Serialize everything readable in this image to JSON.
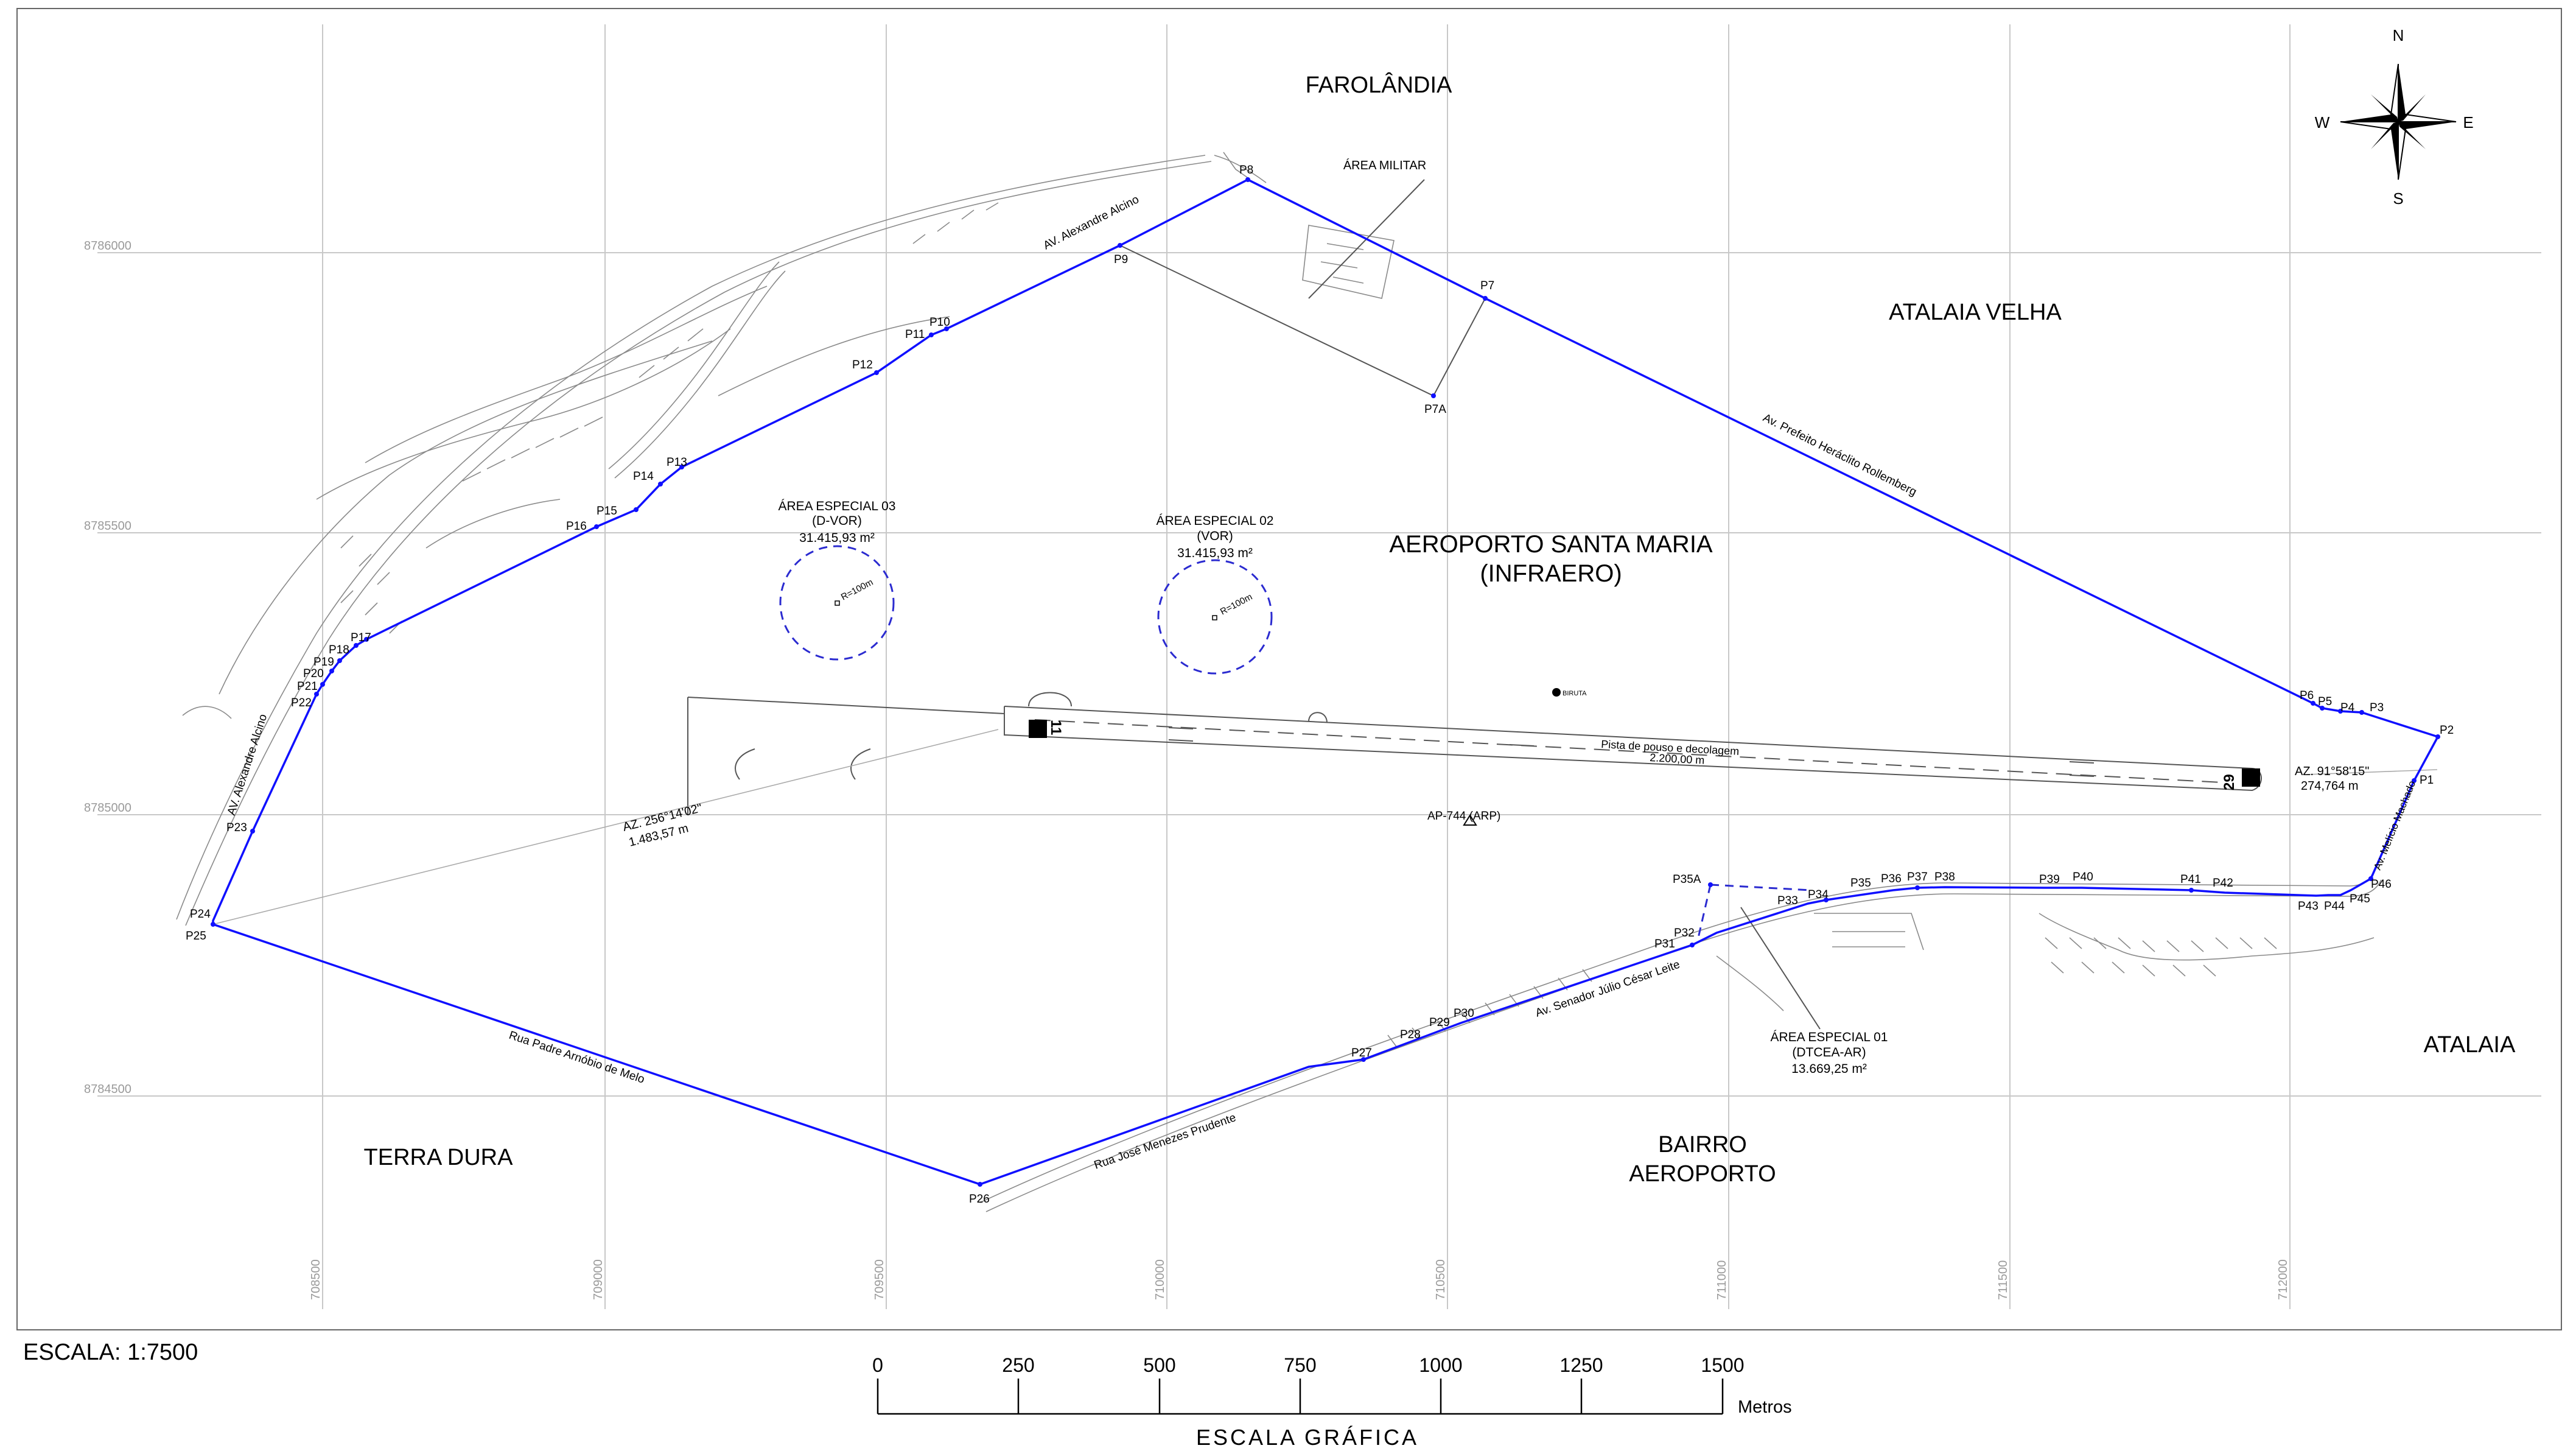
{
  "neighborhoods": {
    "farolandia": "FAROLÂNDIA",
    "atalaia_velha": "ATALAIA VELHA",
    "atalaia": "ATALAIA",
    "terra_dura": "TERRA DURA",
    "bairro_aeroporto_1": "BAIRRO",
    "bairro_aeroporto_2": "AEROPORTO"
  },
  "airport": {
    "name": "AEROPORTO SANTA MARIA",
    "operator": "(INFRAERO)",
    "runway_label": "Pista de pouso e decolagem",
    "runway_length": "2.200,00 m",
    "threshold_a": "11",
    "threshold_b": "29",
    "arp": "AP-744 (ARP)",
    "biruta": "BIRUTA"
  },
  "areas": {
    "militar": "ÁREA MILITAR",
    "esp01_title": "ÁREA ESPECIAL 01",
    "esp01_sub": "(DTCEA-AR)",
    "esp01_area": "13.669,25 m²",
    "esp02_title": "ÁREA ESPECIAL 02",
    "esp02_sub": "(VOR)",
    "esp02_area": "31.415,93 m²",
    "esp02_radius": "R=100m",
    "esp03_title": "ÁREA ESPECIAL 03",
    "esp03_sub": "(D-VOR)",
    "esp03_area": "31.415,93 m²",
    "esp03_radius": "R=100m"
  },
  "streets": {
    "alexandre_alcino_1": "AV. Alexandre Alcino",
    "alexandre_alcino_2": "AV. Alexandre Alcino",
    "heraclito": "Av. Prefeito Heráclito Rollemberg",
    "padre_arnobio": "Rua Padre Arnóbio de Melo",
    "jose_menezes": "Rua José Menezes Prudente",
    "julio_cesar": "Av. Senador Júlio César Leite",
    "melicio": "Av. Melício Machado"
  },
  "azimuths": {
    "az1_angle": "AZ. 91°58'15\"",
    "az1_dist": "274,764 m",
    "az2_angle": "AZ. 256°14'02\"",
    "az2_dist": "1.483,57 m"
  },
  "points": [
    {
      "id": "p1",
      "label": "P1"
    },
    {
      "id": "p2",
      "label": "P2"
    },
    {
      "id": "p3",
      "label": "P3"
    },
    {
      "id": "p4",
      "label": "P4"
    },
    {
      "id": "p5",
      "label": "P5"
    },
    {
      "id": "p6",
      "label": "P6"
    },
    {
      "id": "p7",
      "label": "P7"
    },
    {
      "id": "p7a",
      "label": "P7A"
    },
    {
      "id": "p8",
      "label": "P8"
    },
    {
      "id": "p9",
      "label": "P9"
    },
    {
      "id": "p10",
      "label": "P10"
    },
    {
      "id": "p11",
      "label": "P11"
    },
    {
      "id": "p12",
      "label": "P12"
    },
    {
      "id": "p13",
      "label": "P13"
    },
    {
      "id": "p14",
      "label": "P14"
    },
    {
      "id": "p15",
      "label": "P15"
    },
    {
      "id": "p16",
      "label": "P16"
    },
    {
      "id": "p17",
      "label": "P17"
    },
    {
      "id": "p18",
      "label": "P18"
    },
    {
      "id": "p19",
      "label": "P19"
    },
    {
      "id": "p20",
      "label": "P20"
    },
    {
      "id": "p21",
      "label": "P21"
    },
    {
      "id": "p22",
      "label": "P22"
    },
    {
      "id": "p23",
      "label": "P23"
    },
    {
      "id": "p24",
      "label": "P24"
    },
    {
      "id": "p25",
      "label": "P25"
    },
    {
      "id": "p26",
      "label": "P26"
    },
    {
      "id": "p27",
      "label": "P27"
    },
    {
      "id": "p28",
      "label": "P28"
    },
    {
      "id": "p29",
      "label": "P29"
    },
    {
      "id": "p30",
      "label": "P30"
    },
    {
      "id": "p31",
      "label": "P31"
    },
    {
      "id": "p32",
      "label": "P32"
    },
    {
      "id": "p33",
      "label": "P33"
    },
    {
      "id": "p34",
      "label": "P34"
    },
    {
      "id": "p35",
      "label": "P35"
    },
    {
      "id": "p35a",
      "label": "P35A"
    },
    {
      "id": "p36",
      "label": "P36"
    },
    {
      "id": "p37",
      "label": "P37"
    },
    {
      "id": "p38",
      "label": "P38"
    },
    {
      "id": "p39",
      "label": "P39"
    },
    {
      "id": "p40",
      "label": "P40"
    },
    {
      "id": "p41",
      "label": "P41"
    },
    {
      "id": "p42",
      "label": "P42"
    },
    {
      "id": "p43",
      "label": "P43"
    },
    {
      "id": "p44",
      "label": "P44"
    },
    {
      "id": "p45",
      "label": "P45"
    },
    {
      "id": "p46",
      "label": "P46"
    }
  ],
  "grid": {
    "northings": [
      "8786000",
      "8785500",
      "8785000",
      "8784500"
    ],
    "eastings": [
      "708500",
      "709000",
      "709500",
      "710000",
      "710500",
      "711000",
      "711500",
      "712000"
    ]
  },
  "compass": {
    "n": "N",
    "s": "S",
    "e": "E",
    "w": "W"
  },
  "scale": {
    "text": "ESCALA: 1:7500",
    "ticks": [
      "0",
      "250",
      "500",
      "750",
      "1000",
      "1250",
      "1500"
    ],
    "unit": "Metros",
    "title": "ESCALA GRÁFICA"
  },
  "colors": {
    "boundary": "#1010ff",
    "grid": "#c8c8c8",
    "text": "#000000"
  }
}
